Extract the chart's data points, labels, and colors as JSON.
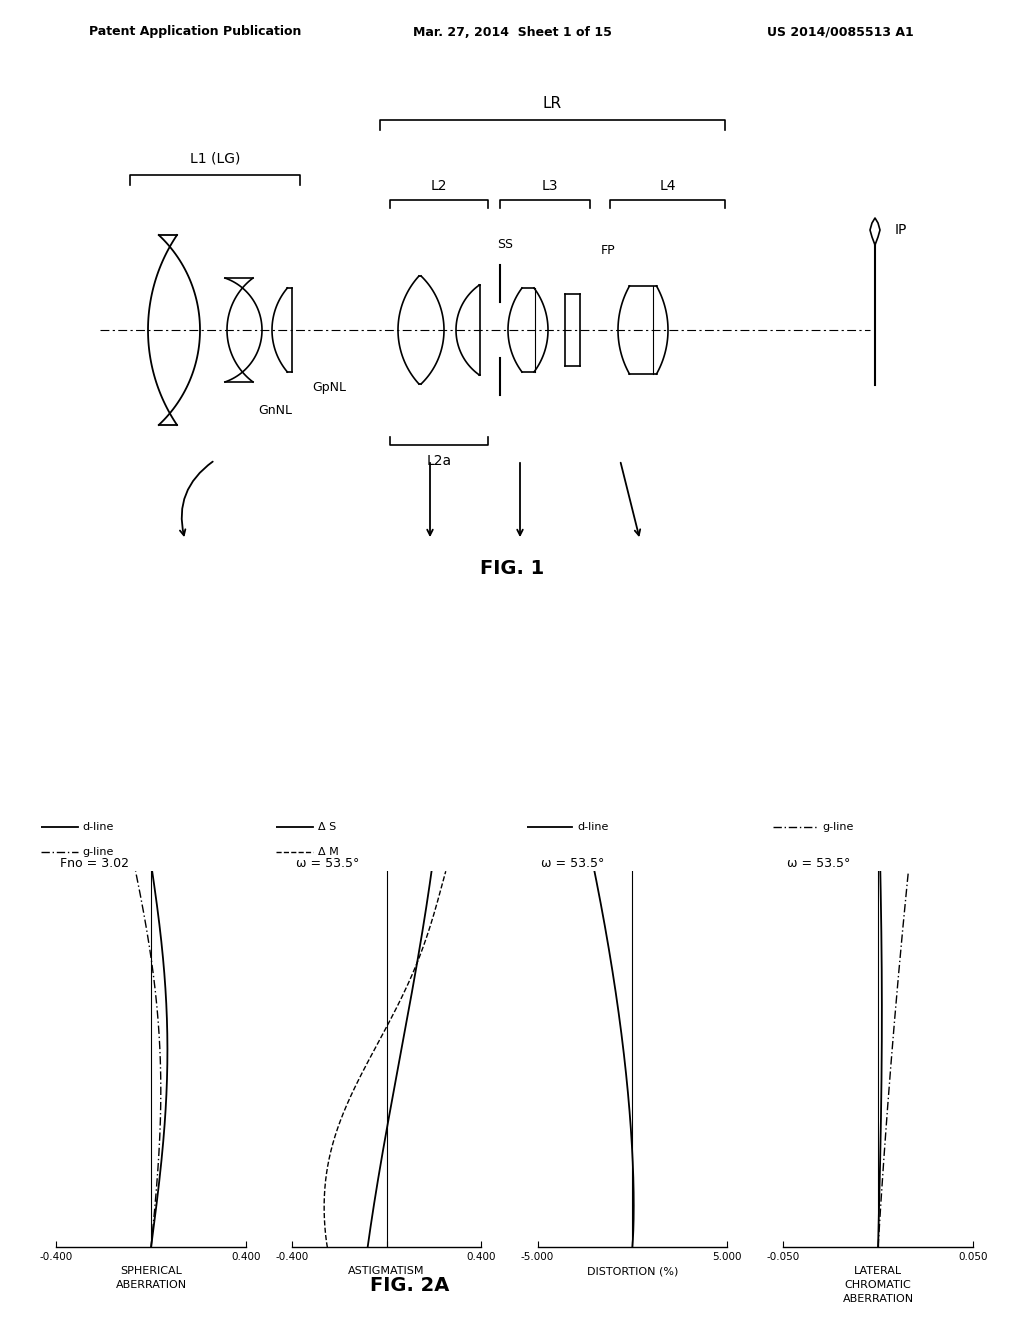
{
  "bg_color": "#ffffff",
  "header_left": "Patent Application Publication",
  "header_mid": "Mar. 27, 2014  Sheet 1 of 15",
  "header_right": "US 2014/0085513 A1",
  "fig1_label": "FIG. 1",
  "fig2a_label": "FIG. 2A",
  "plot1_title": "Fno = 3.02",
  "plot2_title": "ω = 53.5°",
  "plot3_title": "ω = 53.5°",
  "plot4_title": "ω = 53.5°",
  "plot1_xlabel": "SPHERICAL\nABERRATION",
  "plot2_xlabel": "ASTIGMATISM",
  "plot3_xlabel": "DISTORTION (%)",
  "plot4_xlabel": "LATERAL\nCHROMATIC\nABERRATION",
  "plot1_xlim": [
    -0.4,
    0.4
  ],
  "plot2_xlim": [
    -0.4,
    0.4
  ],
  "plot3_xlim": [
    -5.0,
    5.0
  ],
  "plot4_xlim": [
    -0.05,
    0.05
  ],
  "plot1_xticks": [
    -0.4,
    0.0,
    0.4
  ],
  "plot2_xticks": [
    -0.4,
    0.0,
    0.4
  ],
  "plot3_xticks": [
    -5.0,
    0.0,
    5.0
  ],
  "plot4_xticks": [
    -0.05,
    0.0,
    0.05
  ],
  "plot1_xtick_labels": [
    "-0.400",
    "",
    "0.400"
  ],
  "plot2_xtick_labels": [
    "-0.400",
    "",
    "0.400"
  ],
  "plot3_xtick_labels": [
    "-5.000",
    "",
    "5.000"
  ],
  "plot4_xtick_labels": [
    "-0.050",
    "",
    "0.050"
  ]
}
